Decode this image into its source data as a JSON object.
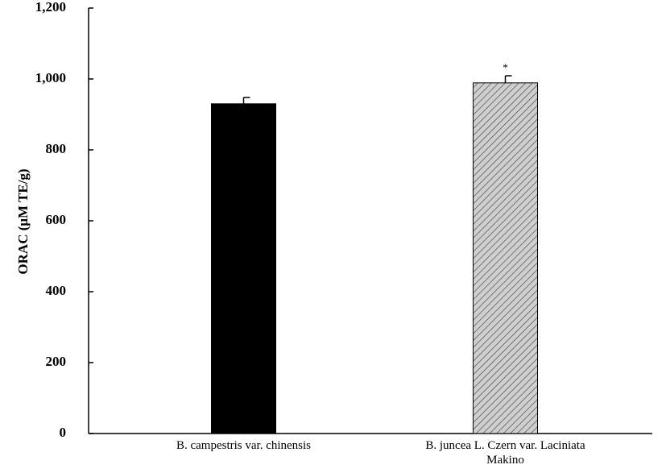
{
  "chart_data": {
    "type": "bar",
    "y_label": "ORAC (μM TE/g)",
    "categories": [
      "B. campestris var. chinensis",
      "B. juncea L. Czern var. Laciniata Makino"
    ],
    "values": [
      930,
      989
    ],
    "errors": [
      18,
      20
    ],
    "colors": [
      "#000000",
      "#cfcfcf"
    ],
    "hatch": [
      false,
      true
    ],
    "annotation": "*",
    "ylim": [
      0,
      1200
    ],
    "yticks": [
      0,
      200,
      400,
      600,
      800,
      {
        "value": 1000,
        "label": "1,000"
      },
      {
        "value": 1200,
        "label": "1,200"
      }
    ],
    "grid": false
  }
}
